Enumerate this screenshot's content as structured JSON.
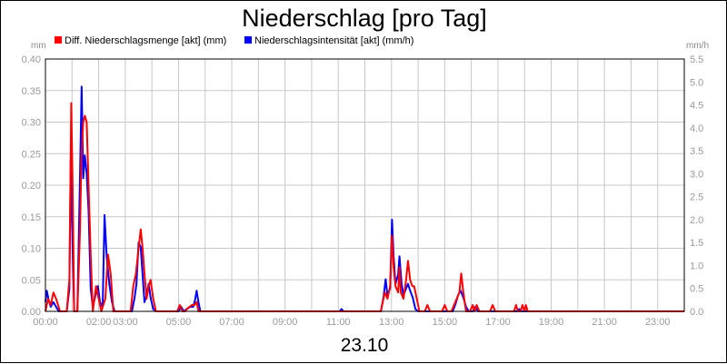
{
  "chart_data": {
    "type": "line",
    "title": "Niederschlag [pro Tag]",
    "subtitle": "23.10",
    "left_unit": "mm",
    "right_unit": "mm/h",
    "ylim_left": [
      0,
      0.4
    ],
    "ylim_right": [
      0,
      5.5
    ],
    "yticks_left": [
      "0.00",
      "0.05",
      "0.10",
      "0.15",
      "0.20",
      "0.25",
      "0.30",
      "0.35",
      "0.40"
    ],
    "yticks_right": [
      "0.0",
      "0.5",
      "1.0",
      "1.5",
      "2.0",
      "2.5",
      "3.0",
      "3.5",
      "4.0",
      "4.5",
      "5.0",
      "5.5"
    ],
    "xlim_hours": [
      0,
      24
    ],
    "xticks": [
      {
        "h": 0,
        "label": "00:00"
      },
      {
        "h": 2,
        "label": "02:00"
      },
      {
        "h": 3,
        "label": "03:00"
      },
      {
        "h": 5,
        "label": "05:00"
      },
      {
        "h": 7,
        "label": "07:00"
      },
      {
        "h": 9,
        "label": "09:00"
      },
      {
        "h": 11,
        "label": "11:00"
      },
      {
        "h": 13,
        "label": "13:00"
      },
      {
        "h": 15,
        "label": "15:00"
      },
      {
        "h": 17,
        "label": "17:00"
      },
      {
        "h": 19,
        "label": "19:00"
      },
      {
        "h": 21,
        "label": "21:00"
      },
      {
        "h": 23,
        "label": "23:00"
      }
    ],
    "grid": true,
    "legend_position": "top-left",
    "series": [
      {
        "name": "Diff. Niederschlagsmenge [akt] (mm)",
        "axis": "left",
        "color": "#ff0000",
        "points": [
          [
            0.0,
            0.0
          ],
          [
            0.1,
            0.02
          ],
          [
            0.2,
            0.01
          ],
          [
            0.3,
            0.03
          ],
          [
            0.4,
            0.02
          ],
          [
            0.55,
            0.0
          ],
          [
            0.8,
            0.0
          ],
          [
            0.9,
            0.05
          ],
          [
            0.97,
            0.33
          ],
          [
            1.02,
            0.2
          ],
          [
            1.08,
            0.0
          ],
          [
            1.2,
            0.0
          ],
          [
            1.3,
            0.13
          ],
          [
            1.35,
            0.24
          ],
          [
            1.42,
            0.3
          ],
          [
            1.48,
            0.31
          ],
          [
            1.55,
            0.3
          ],
          [
            1.62,
            0.2
          ],
          [
            1.7,
            0.09
          ],
          [
            1.78,
            0.0
          ],
          [
            1.9,
            0.04
          ],
          [
            2.0,
            0.02
          ],
          [
            2.1,
            0.0
          ],
          [
            2.25,
            0.02
          ],
          [
            2.35,
            0.09
          ],
          [
            2.45,
            0.06
          ],
          [
            2.55,
            0.0
          ],
          [
            3.2,
            0.0
          ],
          [
            3.3,
            0.04
          ],
          [
            3.4,
            0.06
          ],
          [
            3.5,
            0.1
          ],
          [
            3.58,
            0.13
          ],
          [
            3.65,
            0.1
          ],
          [
            3.72,
            0.06
          ],
          [
            3.8,
            0.02
          ],
          [
            3.88,
            0.04
          ],
          [
            3.95,
            0.05
          ],
          [
            4.05,
            0.02
          ],
          [
            4.15,
            0.0
          ],
          [
            4.95,
            0.0
          ],
          [
            5.05,
            0.01
          ],
          [
            5.15,
            0.0
          ],
          [
            5.25,
            0.0
          ],
          [
            5.35,
            0.005
          ],
          [
            5.5,
            0.01
          ],
          [
            5.6,
            0.01
          ],
          [
            5.68,
            0.015
          ],
          [
            5.75,
            0.0
          ],
          [
            12.6,
            0.0
          ],
          [
            12.75,
            0.03
          ],
          [
            12.85,
            0.02
          ],
          [
            12.95,
            0.04
          ],
          [
            13.02,
            0.12
          ],
          [
            13.08,
            0.07
          ],
          [
            13.15,
            0.04
          ],
          [
            13.25,
            0.03
          ],
          [
            13.3,
            0.07
          ],
          [
            13.35,
            0.03
          ],
          [
            13.45,
            0.02
          ],
          [
            13.55,
            0.05
          ],
          [
            13.62,
            0.08
          ],
          [
            13.7,
            0.05
          ],
          [
            13.78,
            0.04
          ],
          [
            13.85,
            0.04
          ],
          [
            13.95,
            0.02
          ],
          [
            14.05,
            0.0
          ],
          [
            14.25,
            0.0
          ],
          [
            14.35,
            0.01
          ],
          [
            14.45,
            0.0
          ],
          [
            14.9,
            0.0
          ],
          [
            15.0,
            0.01
          ],
          [
            15.1,
            0.0
          ],
          [
            15.25,
            0.0
          ],
          [
            15.35,
            0.01
          ],
          [
            15.45,
            0.02
          ],
          [
            15.55,
            0.03
          ],
          [
            15.62,
            0.06
          ],
          [
            15.7,
            0.03
          ],
          [
            15.8,
            0.0
          ],
          [
            15.95,
            0.0
          ],
          [
            16.05,
            0.01
          ],
          [
            16.12,
            0.0
          ],
          [
            16.2,
            0.01
          ],
          [
            16.3,
            0.0
          ],
          [
            16.7,
            0.0
          ],
          [
            16.8,
            0.01
          ],
          [
            16.9,
            0.0
          ],
          [
            17.6,
            0.0
          ],
          [
            17.68,
            0.01
          ],
          [
            17.75,
            0.0
          ],
          [
            17.85,
            0.0
          ],
          [
            17.92,
            0.01
          ],
          [
            18.0,
            0.0
          ],
          [
            18.05,
            0.01
          ],
          [
            18.12,
            0.0
          ],
          [
            24.0,
            0.0
          ]
        ]
      },
      {
        "name": "Niederschlagsintensität [akt] (mm/h)",
        "axis": "right",
        "color": "#0000ff",
        "points": [
          [
            0.0,
            0.2
          ],
          [
            0.05,
            0.45
          ],
          [
            0.12,
            0.25
          ],
          [
            0.2,
            0.1
          ],
          [
            0.3,
            0.2
          ],
          [
            0.4,
            0.1
          ],
          [
            0.5,
            0.0
          ],
          [
            0.8,
            0.0
          ],
          [
            0.9,
            0.5
          ],
          [
            0.95,
            3.3
          ],
          [
            1.02,
            1.4
          ],
          [
            1.08,
            0.0
          ],
          [
            1.2,
            0.0
          ],
          [
            1.3,
            3.0
          ],
          [
            1.36,
            4.9
          ],
          [
            1.42,
            2.9
          ],
          [
            1.48,
            3.4
          ],
          [
            1.55,
            3.0
          ],
          [
            1.62,
            2.2
          ],
          [
            1.7,
            0.5
          ],
          [
            1.78,
            0.1
          ],
          [
            1.88,
            0.35
          ],
          [
            1.97,
            0.55
          ],
          [
            2.05,
            0.2
          ],
          [
            2.15,
            0.1
          ],
          [
            2.22,
            2.1
          ],
          [
            2.3,
            1.2
          ],
          [
            2.4,
            0.6
          ],
          [
            2.5,
            0.2
          ],
          [
            2.6,
            0.0
          ],
          [
            3.25,
            0.0
          ],
          [
            3.35,
            0.3
          ],
          [
            3.42,
            0.6
          ],
          [
            3.5,
            1.5
          ],
          [
            3.58,
            1.4
          ],
          [
            3.65,
            0.8
          ],
          [
            3.72,
            0.2
          ],
          [
            3.8,
            0.35
          ],
          [
            3.88,
            0.6
          ],
          [
            3.95,
            0.3
          ],
          [
            4.05,
            0.05
          ],
          [
            4.15,
            0.0
          ],
          [
            5.0,
            0.0
          ],
          [
            5.1,
            0.1
          ],
          [
            5.2,
            0.0
          ],
          [
            5.3,
            0.05
          ],
          [
            5.45,
            0.1
          ],
          [
            5.55,
            0.1
          ],
          [
            5.62,
            0.25
          ],
          [
            5.68,
            0.45
          ],
          [
            5.75,
            0.2
          ],
          [
            5.82,
            0.0
          ],
          [
            11.05,
            0.0
          ],
          [
            11.12,
            0.05
          ],
          [
            11.2,
            0.0
          ],
          [
            12.6,
            0.0
          ],
          [
            12.7,
            0.3
          ],
          [
            12.78,
            0.7
          ],
          [
            12.85,
            0.35
          ],
          [
            12.95,
            0.5
          ],
          [
            13.02,
            2.0
          ],
          [
            13.08,
            1.2
          ],
          [
            13.15,
            0.6
          ],
          [
            13.25,
            0.8
          ],
          [
            13.3,
            1.2
          ],
          [
            13.38,
            0.6
          ],
          [
            13.45,
            0.35
          ],
          [
            13.55,
            0.5
          ],
          [
            13.62,
            0.6
          ],
          [
            13.7,
            0.45
          ],
          [
            13.8,
            0.3
          ],
          [
            13.9,
            0.05
          ],
          [
            14.0,
            0.0
          ],
          [
            15.3,
            0.0
          ],
          [
            15.4,
            0.15
          ],
          [
            15.5,
            0.35
          ],
          [
            15.6,
            0.45
          ],
          [
            15.7,
            0.3
          ],
          [
            15.8,
            0.1
          ],
          [
            15.9,
            0.0
          ],
          [
            16.05,
            0.0
          ],
          [
            16.15,
            0.1
          ],
          [
            16.25,
            0.0
          ],
          [
            17.7,
            0.0
          ],
          [
            17.8,
            0.05
          ],
          [
            17.9,
            0.0
          ],
          [
            24.0,
            0.0
          ]
        ]
      }
    ]
  }
}
